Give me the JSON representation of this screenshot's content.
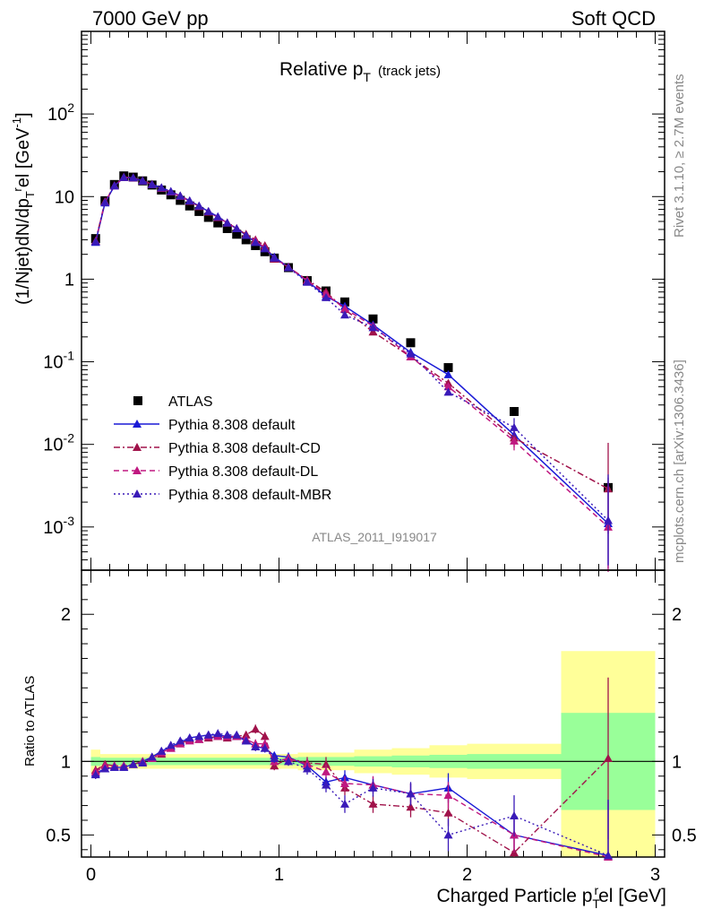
{
  "header": {
    "left": "7000 GeV pp",
    "right": "Soft QCD"
  },
  "side_texts": {
    "rivet": "Rivet 3.1.10, ≥ 2.7M events",
    "mcplots": "mcplots.cern.ch [arXiv:1306.3436]"
  },
  "chart_data": [
    {
      "type": "scatter",
      "panel": "main",
      "title_main": "Relative p",
      "title_sub": "T",
      "title_extra": "(track jets)",
      "watermark": "ATLAS_2011_I919017",
      "ylabel": "(1/Njet)dN/dp",
      "ylabel_sub": "T",
      "ylabel_sup": "r",
      "ylabel_mid": "el [GeV",
      "ylabel_exp": "-1",
      "ylabel_end": "]",
      "yscale": "log",
      "ylim": [
        0.0003,
        1000
      ],
      "xlim": [
        -0.05,
        3.05
      ],
      "ytick_labels": [
        "10^{-3}",
        "10^{-2}",
        "10^{-1}",
        "1",
        "10",
        "10^{2}"
      ],
      "ytick_values": [
        0.001,
        0.01,
        0.1,
        1,
        10,
        100
      ],
      "legend_position": "lower-left",
      "series": [
        {
          "name": "ATLAS",
          "style": "square",
          "color": "#000000",
          "x": [
            0.025,
            0.075,
            0.125,
            0.175,
            0.225,
            0.275,
            0.325,
            0.375,
            0.425,
            0.475,
            0.525,
            0.575,
            0.625,
            0.675,
            0.725,
            0.775,
            0.825,
            0.875,
            0.925,
            0.975,
            1.05,
            1.15,
            1.25,
            1.35,
            1.5,
            1.7,
            1.9,
            2.25,
            2.75
          ],
          "y": [
            3.1,
            8.9,
            14,
            17.8,
            17.2,
            15.5,
            13.8,
            12.0,
            10.5,
            9.0,
            7.7,
            6.6,
            5.6,
            4.8,
            4.1,
            3.5,
            3.0,
            2.55,
            2.15,
            1.8,
            1.38,
            0.96,
            0.72,
            0.53,
            0.33,
            0.17,
            0.085,
            0.025,
            0.003
          ]
        },
        {
          "name": "Pythia 8.308 default",
          "style": "solid",
          "color": "#1a1ad6",
          "x": [
            0.025,
            0.075,
            0.125,
            0.175,
            0.225,
            0.275,
            0.325,
            0.375,
            0.425,
            0.475,
            0.525,
            0.575,
            0.625,
            0.675,
            0.725,
            0.775,
            0.825,
            0.875,
            0.925,
            0.975,
            1.05,
            1.15,
            1.25,
            1.35,
            1.5,
            1.7,
            1.9,
            2.25,
            2.75
          ],
          "y": [
            2.8,
            8.4,
            13.5,
            17.0,
            16.8,
            15.5,
            14.0,
            12.8,
            11.5,
            10.2,
            8.9,
            7.7,
            6.6,
            5.7,
            4.8,
            4.1,
            3.4,
            2.8,
            2.35,
            1.85,
            1.4,
            0.95,
            0.62,
            0.47,
            0.28,
            0.13,
            0.07,
            0.013,
            0.0011
          ]
        },
        {
          "name": "Pythia 8.308 default-CD",
          "style": "dashdot",
          "color": "#a0124a",
          "x": [
            0.025,
            0.075,
            0.125,
            0.175,
            0.225,
            0.275,
            0.325,
            0.375,
            0.425,
            0.475,
            0.525,
            0.575,
            0.625,
            0.675,
            0.725,
            0.775,
            0.825,
            0.875,
            0.925,
            0.975,
            1.05,
            1.15,
            1.25,
            1.35,
            1.5,
            1.7,
            1.9,
            2.25,
            2.75
          ],
          "y": [
            2.9,
            8.7,
            13.6,
            17.2,
            16.9,
            15.6,
            14.1,
            12.6,
            11.4,
            10.2,
            8.8,
            7.6,
            6.5,
            5.6,
            4.8,
            4.1,
            3.5,
            3.0,
            2.55,
            1.75,
            1.4,
            0.98,
            0.7,
            0.43,
            0.23,
            0.115,
            0.055,
            0.012,
            0.0029
          ]
        },
        {
          "name": "Pythia 8.308 default-DL",
          "style": "dashed",
          "color": "#c01880",
          "x": [
            0.025,
            0.075,
            0.125,
            0.175,
            0.225,
            0.275,
            0.325,
            0.375,
            0.425,
            0.475,
            0.525,
            0.575,
            0.625,
            0.675,
            0.725,
            0.775,
            0.825,
            0.875,
            0.925,
            0.975,
            1.05,
            1.15,
            1.25,
            1.35,
            1.5,
            1.7,
            1.9,
            2.25,
            2.75
          ],
          "y": [
            2.85,
            8.6,
            13.5,
            17.1,
            16.8,
            15.5,
            14.0,
            12.7,
            11.4,
            10.1,
            8.8,
            7.6,
            6.6,
            5.6,
            4.8,
            4.1,
            3.4,
            2.9,
            2.4,
            1.8,
            1.4,
            0.96,
            0.66,
            0.44,
            0.27,
            0.115,
            0.05,
            0.011,
            0.001
          ]
        },
        {
          "name": "Pythia 8.308 default-MBR",
          "style": "dotted",
          "color": "#3a1ab8",
          "x": [
            0.025,
            0.075,
            0.125,
            0.175,
            0.225,
            0.275,
            0.325,
            0.375,
            0.425,
            0.475,
            0.525,
            0.575,
            0.625,
            0.675,
            0.725,
            0.775,
            0.825,
            0.875,
            0.925,
            0.975,
            1.05,
            1.15,
            1.25,
            1.35,
            1.5,
            1.7,
            1.9,
            2.25,
            2.75
          ],
          "y": [
            2.85,
            8.5,
            13.5,
            17.1,
            16.9,
            15.5,
            14.0,
            12.8,
            11.5,
            10.2,
            8.9,
            7.7,
            6.6,
            5.7,
            4.8,
            4.1,
            3.4,
            2.8,
            2.35,
            1.8,
            1.38,
            0.92,
            0.6,
            0.37,
            0.26,
            0.125,
            0.043,
            0.016,
            0.0012
          ]
        }
      ]
    },
    {
      "type": "scatter",
      "panel": "ratio",
      "ylabel": "Ratio to ATLAS",
      "xlabel_pre": "Charged Particle p",
      "xlabel_sub": "T",
      "xlabel_sup": "r",
      "xlabel_post": "el [GeV]",
      "ylim": [
        0.35,
        2.3
      ],
      "xlim": [
        -0.05,
        3.05
      ],
      "ytick_labels": [
        "0.5",
        "1",
        "2"
      ],
      "ytick_values": [
        0.5,
        1,
        2
      ],
      "xtick_labels": [
        "0",
        "1",
        "2",
        "3"
      ],
      "xtick_values": [
        0,
        1,
        2,
        3
      ],
      "bands": {
        "edges": [
          0,
          0.05,
          0.1,
          0.15,
          0.2,
          0.25,
          0.3,
          0.35,
          0.4,
          0.45,
          0.5,
          0.55,
          0.6,
          0.65,
          0.7,
          0.75,
          0.8,
          0.85,
          0.9,
          0.95,
          1.0,
          1.1,
          1.2,
          1.3,
          1.4,
          1.6,
          1.8,
          2.0,
          2.5,
          3.0
        ],
        "yellow": [
          0.08,
          0.05,
          0.05,
          0.05,
          0.05,
          0.05,
          0.05,
          0.05,
          0.05,
          0.05,
          0.05,
          0.05,
          0.05,
          0.05,
          0.05,
          0.05,
          0.05,
          0.05,
          0.05,
          0.05,
          0.05,
          0.06,
          0.06,
          0.06,
          0.08,
          0.09,
          0.11,
          0.12,
          0.75
        ],
        "green": [
          0.03,
          0.025,
          0.025,
          0.025,
          0.025,
          0.025,
          0.025,
          0.025,
          0.025,
          0.025,
          0.025,
          0.025,
          0.025,
          0.025,
          0.025,
          0.025,
          0.025,
          0.025,
          0.025,
          0.025,
          0.025,
          0.03,
          0.03,
          0.03,
          0.035,
          0.04,
          0.045,
          0.05,
          0.33
        ]
      },
      "series": [
        {
          "name": "Pythia 8.308 default",
          "color": "#1a1ad6",
          "style": "solid",
          "x": [
            0.025,
            0.075,
            0.125,
            0.175,
            0.225,
            0.275,
            0.325,
            0.375,
            0.425,
            0.475,
            0.525,
            0.575,
            0.625,
            0.675,
            0.725,
            0.775,
            0.825,
            0.875,
            0.925,
            0.975,
            1.05,
            1.15,
            1.25,
            1.35,
            1.5,
            1.7,
            1.9,
            2.25,
            2.75
          ],
          "y": [
            0.92,
            0.95,
            0.96,
            0.96,
            0.98,
            1.0,
            1.03,
            1.07,
            1.1,
            1.13,
            1.16,
            1.17,
            1.18,
            1.18,
            1.17,
            1.17,
            1.14,
            1.1,
            1.09,
            1.04,
            1.03,
            0.97,
            0.86,
            0.89,
            0.84,
            0.78,
            0.82,
            0.5,
            0.36
          ],
          "err": [
            0.03,
            0.02,
            0.02,
            0.02,
            0.02,
            0.02,
            0.02,
            0.02,
            0.02,
            0.02,
            0.02,
            0.02,
            0.02,
            0.02,
            0.02,
            0.02,
            0.02,
            0.02,
            0.02,
            0.02,
            0.03,
            0.03,
            0.04,
            0.05,
            0.05,
            0.07,
            0.1,
            0.12,
            0.38
          ]
        },
        {
          "name": "Pythia 8.308 default-CD",
          "color": "#a0124a",
          "style": "dashdot",
          "x": [
            0.025,
            0.075,
            0.125,
            0.175,
            0.225,
            0.275,
            0.325,
            0.375,
            0.425,
            0.475,
            0.525,
            0.575,
            0.625,
            0.675,
            0.725,
            0.775,
            0.825,
            0.875,
            0.925,
            0.975,
            1.05,
            1.15,
            1.25,
            1.35,
            1.5,
            1.7,
            1.9,
            2.25,
            2.75
          ],
          "y": [
            0.94,
            0.98,
            0.97,
            0.97,
            0.98,
            1.0,
            1.02,
            1.05,
            1.09,
            1.12,
            1.15,
            1.15,
            1.16,
            1.17,
            1.16,
            1.17,
            1.18,
            1.22,
            1.17,
            0.97,
            1.02,
            0.99,
            0.98,
            0.82,
            0.71,
            0.69,
            0.65,
            0.38,
            1.02
          ],
          "err": [
            0.03,
            0.02,
            0.02,
            0.02,
            0.02,
            0.02,
            0.02,
            0.02,
            0.02,
            0.02,
            0.02,
            0.02,
            0.02,
            0.02,
            0.02,
            0.02,
            0.02,
            0.03,
            0.03,
            0.03,
            0.03,
            0.04,
            0.05,
            0.05,
            0.06,
            0.07,
            0.09,
            0.12,
            0.55
          ]
        },
        {
          "name": "Pythia 8.308 default-DL",
          "color": "#c01880",
          "style": "dashed",
          "x": [
            0.025,
            0.075,
            0.125,
            0.175,
            0.225,
            0.275,
            0.325,
            0.375,
            0.425,
            0.475,
            0.525,
            0.575,
            0.625,
            0.675,
            0.725,
            0.775,
            0.825,
            0.875,
            0.925,
            0.975,
            1.05,
            1.15,
            1.25,
            1.35,
            1.5,
            1.7,
            1.9,
            2.25,
            2.75
          ],
          "y": [
            0.93,
            0.97,
            0.97,
            0.97,
            0.98,
            1.0,
            1.02,
            1.06,
            1.09,
            1.12,
            1.14,
            1.15,
            1.17,
            1.17,
            1.17,
            1.17,
            1.15,
            1.12,
            1.12,
            1.0,
            1.02,
            0.98,
            0.93,
            0.85,
            0.84,
            0.78,
            0.77,
            0.5,
            0.35
          ],
          "err": [
            0.03,
            0.02,
            0.02,
            0.02,
            0.02,
            0.02,
            0.02,
            0.02,
            0.02,
            0.02,
            0.02,
            0.02,
            0.02,
            0.02,
            0.02,
            0.02,
            0.02,
            0.03,
            0.03,
            0.03,
            0.03,
            0.04,
            0.05,
            0.05,
            0.06,
            0.07,
            0.09,
            0.12,
            0.38
          ]
        },
        {
          "name": "Pythia 8.308 default-MBR",
          "color": "#3a1ab8",
          "style": "dotted",
          "x": [
            0.025,
            0.075,
            0.125,
            0.175,
            0.225,
            0.275,
            0.325,
            0.375,
            0.425,
            0.475,
            0.525,
            0.575,
            0.625,
            0.675,
            0.725,
            0.775,
            0.825,
            0.875,
            0.925,
            0.975,
            1.05,
            1.15,
            1.25,
            1.35,
            1.5,
            1.7,
            1.9,
            2.25,
            2.75
          ],
          "y": [
            0.91,
            0.95,
            0.96,
            0.96,
            0.98,
            0.99,
            1.03,
            1.07,
            1.11,
            1.14,
            1.16,
            1.17,
            1.18,
            1.19,
            1.18,
            1.18,
            1.14,
            1.1,
            1.09,
            1.02,
            1.0,
            0.95,
            0.84,
            0.71,
            0.82,
            0.78,
            0.5,
            0.63,
            0.36
          ],
          "err": [
            0.03,
            0.02,
            0.02,
            0.02,
            0.02,
            0.02,
            0.02,
            0.02,
            0.02,
            0.02,
            0.02,
            0.02,
            0.02,
            0.02,
            0.02,
            0.02,
            0.02,
            0.03,
            0.03,
            0.03,
            0.03,
            0.04,
            0.05,
            0.06,
            0.06,
            0.08,
            0.11,
            0.14,
            0.38
          ]
        }
      ]
    }
  ]
}
